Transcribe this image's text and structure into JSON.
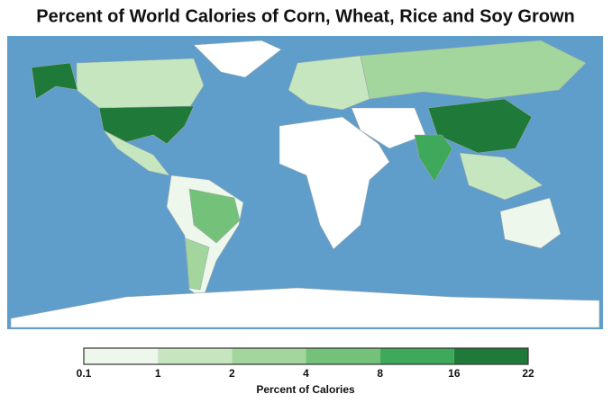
{
  "title": "Percent of World Calories of Corn, Wheat, Rice and Soy Grown",
  "legend": {
    "label": "Percent of Calories",
    "ticks": [
      0.1,
      1,
      2,
      4,
      8,
      16,
      22
    ],
    "colors": [
      "#eef7ec",
      "#c6e6c0",
      "#a3d69c",
      "#74c27a",
      "#3fa95b",
      "#1f7a3a"
    ]
  }
}
